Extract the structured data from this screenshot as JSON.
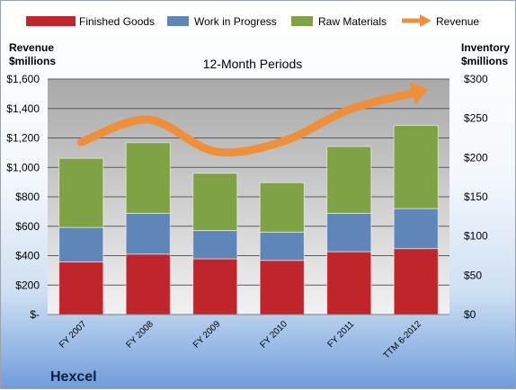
{
  "company": "Hexcel",
  "chart_data": {
    "type": "bar",
    "stacked": true,
    "subtitle": "12-Month Periods",
    "categories": [
      "FY 2007",
      "FY 2008",
      "FY 2009",
      "FY 2010",
      "FY 2011",
      "TTM 6-2012"
    ],
    "series": [
      {
        "name": "Finished Goods",
        "axis": "right",
        "color": "#c0252b",
        "values": [
          67,
          77,
          71,
          69,
          80,
          84
        ]
      },
      {
        "name": "Work in Progress",
        "axis": "right",
        "color": "#5f86b8",
        "values": [
          44,
          52,
          36,
          36,
          49,
          51
        ]
      },
      {
        "name": "Raw Materials",
        "axis": "right",
        "color": "#7fa344",
        "values": [
          88,
          90,
          73,
          63,
          85,
          106
        ]
      },
      {
        "name": "Revenue",
        "axis": "left",
        "color": "#ef8f3a",
        "kind": "line-arrow",
        "values": [
          1171,
          1325,
          1108,
          1174,
          1392,
          1510
        ]
      }
    ],
    "left_axis": {
      "title_line1": "Revenue",
      "title_line2": "$millions",
      "min": 0,
      "max": 1600,
      "step": 200,
      "tick_labels": [
        "$-",
        "$200",
        "$400",
        "$600",
        "$800",
        "$1,000",
        "$1,200",
        "$1,400",
        "$1,600"
      ]
    },
    "right_axis": {
      "title_line1": "Inventory",
      "title_line2": "$millions",
      "min": 0,
      "max": 300,
      "step": 50,
      "tick_labels": [
        "$0",
        "$50",
        "$100",
        "$150",
        "$200",
        "$250",
        "$300"
      ]
    },
    "legend": "top",
    "grid": true
  }
}
